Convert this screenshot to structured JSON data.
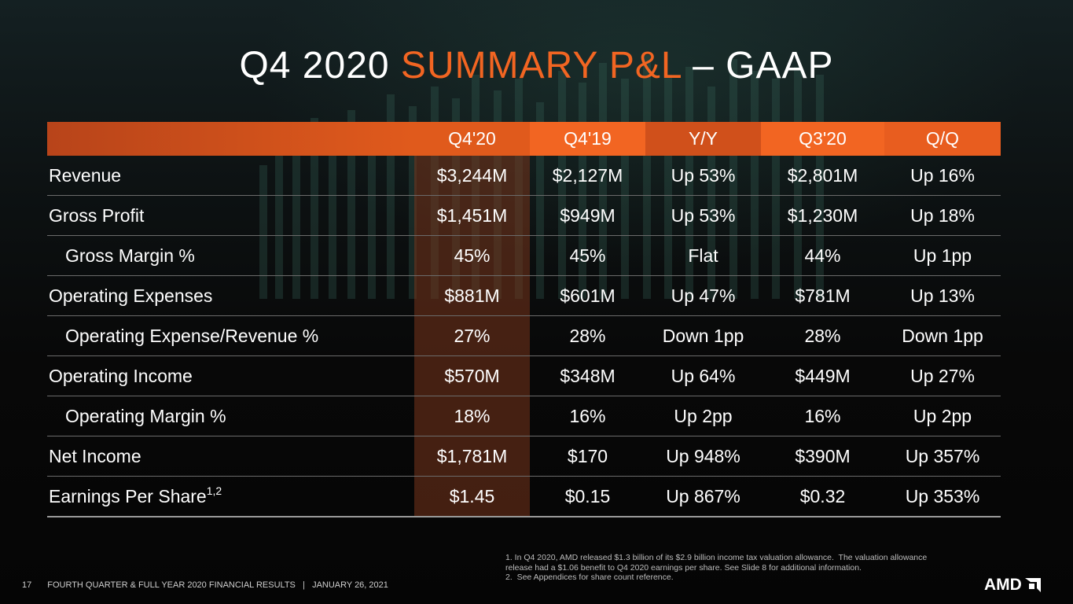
{
  "title": {
    "part1": "Q4 2020 ",
    "accent": "SUMMARY P&L",
    "part2": " – GAAP"
  },
  "colors": {
    "accent": "#f26522",
    "header_bg": "#e05a1c",
    "highlight_col": "#78341c"
  },
  "table": {
    "columns": [
      "",
      "Q4'20",
      "Q4'19",
      "Y/Y",
      "Q3'20",
      "Q/Q"
    ],
    "rows": [
      {
        "label": "Revenue",
        "values": [
          "$3,244M",
          "$2,127M",
          "Up 53%",
          "$2,801M",
          "Up 16%"
        ]
      },
      {
        "label": "Gross Profit",
        "values": [
          "$1,451M",
          "$949M",
          "Up 53%",
          "$1,230M",
          "Up 18%"
        ]
      },
      {
        "label": "Gross Margin %",
        "values": [
          "45%",
          "45%",
          "Flat",
          "44%",
          "Up 1pp"
        ]
      },
      {
        "label": "Operating Expenses",
        "values": [
          "$881M",
          "$601M",
          "Up 47%",
          "$781M",
          "Up 13%"
        ]
      },
      {
        "label": "Operating Expense/Revenue %",
        "values": [
          "27%",
          "28%",
          "Down 1pp",
          "28%",
          "Down 1pp"
        ]
      },
      {
        "label": "Operating Income",
        "values": [
          "$570M",
          "$348M",
          "Up 64%",
          "$449M",
          "Up 27%"
        ]
      },
      {
        "label": "Operating Margin %",
        "values": [
          "18%",
          "16%",
          "Up 2pp",
          "16%",
          "Up 2pp"
        ]
      },
      {
        "label": "Net Income",
        "values": [
          "$1,781M",
          "$170",
          "Up 948%",
          "$390M",
          "Up 357%"
        ]
      },
      {
        "label": "Earnings Per Share",
        "sup": "1,2",
        "values": [
          "$1.45",
          "$0.15",
          "Up 867%",
          "$0.32",
          "Up 353%"
        ]
      }
    ]
  },
  "footnotes": [
    "1. In Q4 2020, AMD released $1.3 billion of its $2.9 billion income tax valuation allowance.  The valuation allowance release had a $1.06 benefit to Q4 2020 earnings per share. See Slide 8 for additional information.",
    "2.  See Appendices for share count reference."
  ],
  "footer": {
    "page_number": "17",
    "text": "FOURTH QUARTER & FULL YEAR 2020 FINANCIAL RESULTS   |   JANUARY 26, 2021"
  },
  "logo": {
    "text": "AMD",
    "icon": "amd-arrow-icon"
  }
}
